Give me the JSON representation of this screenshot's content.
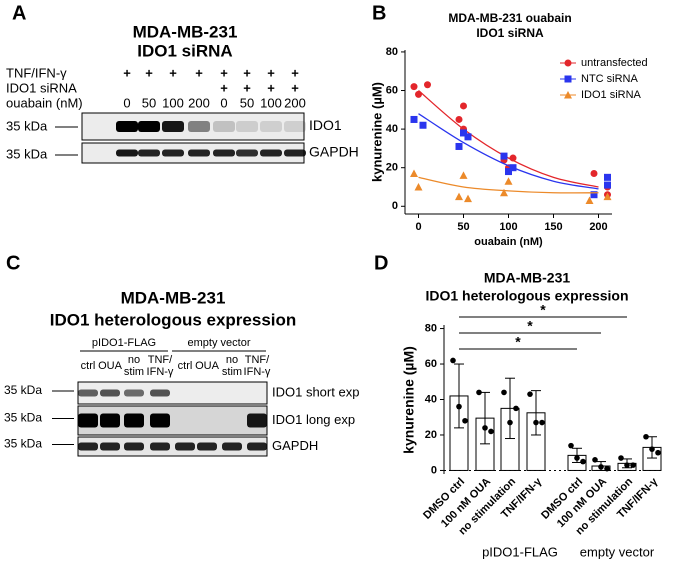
{
  "panel_letters": [
    "A",
    "B",
    "C",
    "D"
  ],
  "blot_a": {
    "title": [
      "MDA-MB-231",
      "IDO1 siRNA"
    ],
    "row_labels": [
      "TNF/IFN-γ",
      "IDO1 siRNA",
      "ouabain (nM)"
    ],
    "rows": [
      [
        "+",
        "+",
        "+",
        "+",
        "+",
        "+",
        "+",
        "+"
      ],
      [
        null,
        null,
        null,
        null,
        "+",
        "+",
        "+",
        "+"
      ],
      [
        "0",
        "50",
        "100",
        "200",
        "0",
        "50",
        "100",
        "200"
      ]
    ],
    "markers": [
      "35 kDa",
      "35 kDa"
    ],
    "bands": [
      "IDO1",
      "GAPDH"
    ]
  },
  "blot_c": {
    "title": [
      "MDA-MB-231",
      "IDO1 heterologous expression"
    ],
    "groups": [
      "pIDO1-FLAG",
      "empty vector"
    ],
    "lanes": [
      [
        "ctrl"
      ],
      [
        "OUA"
      ],
      [
        "no",
        "stim"
      ],
      [
        "TNF/",
        "IFN-γ"
      ],
      [
        "ctrl"
      ],
      [
        "OUA"
      ],
      [
        "no",
        "stim"
      ],
      [
        "TNF/",
        "IFN-γ"
      ]
    ],
    "markers": [
      "35 kDa",
      "35 kDa",
      "35 kDa"
    ],
    "bands": [
      "IDO1 short exp",
      "IDO1 long exp",
      "GAPDH"
    ]
  },
  "chart_data": [
    {
      "type": "scatter",
      "title": [
        "MDA-MB-231 ouabain",
        "IDO1 siRNA"
      ],
      "xlabel": "ouabain (nM)",
      "ylabel": "kynurenine (µM)",
      "xlim": [
        -15,
        215
      ],
      "xticks": [
        0,
        50,
        100,
        150,
        200
      ],
      "ylim": [
        -4,
        81
      ],
      "yticks": [
        0,
        20,
        40,
        60,
        80
      ],
      "legend": "upper right",
      "fit_x": [
        0,
        50,
        100,
        150,
        200
      ],
      "series": [
        {
          "name": "untransfected",
          "color": "#e3262b",
          "marker": "circle",
          "x": [
            -5,
            0,
            10,
            45,
            50,
            50,
            95,
            100,
            105,
            195,
            210,
            210
          ],
          "values": [
            62,
            58,
            63,
            45,
            52,
            40,
            24,
            20,
            25,
            17,
            10,
            6
          ],
          "fit": [
            60,
            40,
            25,
            15,
            10
          ]
        },
        {
          "name": "NTC siRNA",
          "color": "#2a35ee",
          "marker": "square",
          "x": [
            -5,
            5,
            45,
            50,
            55,
            95,
            100,
            105,
            195,
            210,
            210
          ],
          "values": [
            45,
            42,
            31,
            38,
            36,
            26,
            18,
            20,
            6,
            15,
            11
          ],
          "fit": [
            48,
            33,
            21,
            13,
            9
          ]
        },
        {
          "name": "IDO1 siRNA",
          "color": "#ec8a2a",
          "marker": "triangle",
          "x": [
            -5,
            0,
            45,
            50,
            55,
            95,
            100,
            190,
            210
          ],
          "values": [
            17,
            10,
            5,
            16,
            4,
            7,
            13,
            3,
            5
          ],
          "fit": [
            15,
            10,
            8,
            7,
            7
          ]
        }
      ]
    },
    {
      "type": "bar",
      "title": [
        "MDA-MB-231",
        "IDO1 heterologous expression"
      ],
      "ylabel": "kynurenine (µM)",
      "categories": [
        "DMSO ctrl",
        "100 nM OUA",
        "no stimulation",
        "TNF/IFN-γ",
        "DMSO ctrl",
        "100 nM OUA",
        "no stimulation",
        "TNF/IFN-γ"
      ],
      "groups": [
        "pIDO1-FLAG",
        "empty vector"
      ],
      "values": [
        42,
        29.5,
        35,
        32.5,
        8.5,
        2.5,
        4,
        13
      ],
      "errors": [
        18,
        14.5,
        17,
        12.5,
        4,
        2.5,
        2.5,
        6
      ],
      "points": [
        [
          62,
          36,
          28
        ],
        [
          44,
          24,
          22
        ],
        [
          44,
          27,
          35
        ],
        [
          43,
          27,
          27
        ],
        [
          14,
          7,
          5
        ],
        [
          6,
          2,
          1
        ],
        [
          7,
          3,
          3
        ],
        [
          19,
          12,
          10
        ]
      ],
      "ylim": [
        -2,
        82
      ],
      "yticks": [
        0,
        20,
        40,
        60,
        80
      ],
      "annotations": [
        "*",
        "*",
        "*"
      ]
    }
  ]
}
